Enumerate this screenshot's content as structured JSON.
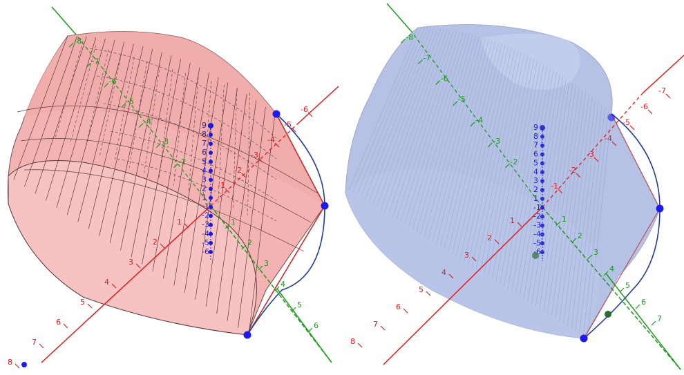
{
  "colors": {
    "x_axis": "#e41a1c",
    "y_axis": "#1a9a1a",
    "z_axis": "#1a1adc",
    "curve": "#1f3b9e",
    "point": "#1b1bf0",
    "left_surface": "#f4b3b3",
    "left_mesh": "#5a3a3a",
    "right_surface": "#aebbe3",
    "right_mesh": "#8a96c0",
    "edge": "#c0302b"
  },
  "panels": [
    {
      "name": "left",
      "surface": "solid-pink",
      "x_labels_near": [
        "1",
        "2",
        "3",
        "4",
        "5",
        "6",
        "7",
        "8"
      ],
      "x_labels_far": [
        "-1",
        "-2",
        "-3",
        "-4",
        "-5",
        "-6"
      ],
      "y_labels_near": [
        "1",
        "2",
        "3",
        "4",
        "5",
        "6"
      ],
      "y_labels_far": [
        "-2",
        "-3",
        "-4",
        "-5",
        "-6",
        "-7",
        "-8"
      ],
      "z_labels": [
        "9",
        "8",
        "7",
        "6",
        "5",
        "4",
        "3",
        "2",
        "1",
        "-1",
        "-2",
        "-3",
        "-4",
        "-5",
        "-6"
      ]
    },
    {
      "name": "right",
      "surface": "translucent-blue",
      "x_labels_near": [
        "1",
        "2",
        "3",
        "4",
        "5",
        "6",
        "7",
        "8"
      ],
      "x_labels_far": [
        "-1",
        "-2",
        "-3",
        "-4",
        "-5",
        "-6",
        "-7"
      ],
      "y_labels_near": [
        "1",
        "2",
        "3",
        "4",
        "5",
        "6",
        "7"
      ],
      "y_labels_far": [
        "-2",
        "-3",
        "-4",
        "-5",
        "-6",
        "-7",
        "-8"
      ],
      "z_labels": [
        "9",
        "8",
        "7",
        "6",
        "5",
        "4",
        "3",
        "2",
        "1",
        "-1",
        "-2",
        "-3",
        "-4",
        "-5",
        "-6"
      ]
    }
  ]
}
